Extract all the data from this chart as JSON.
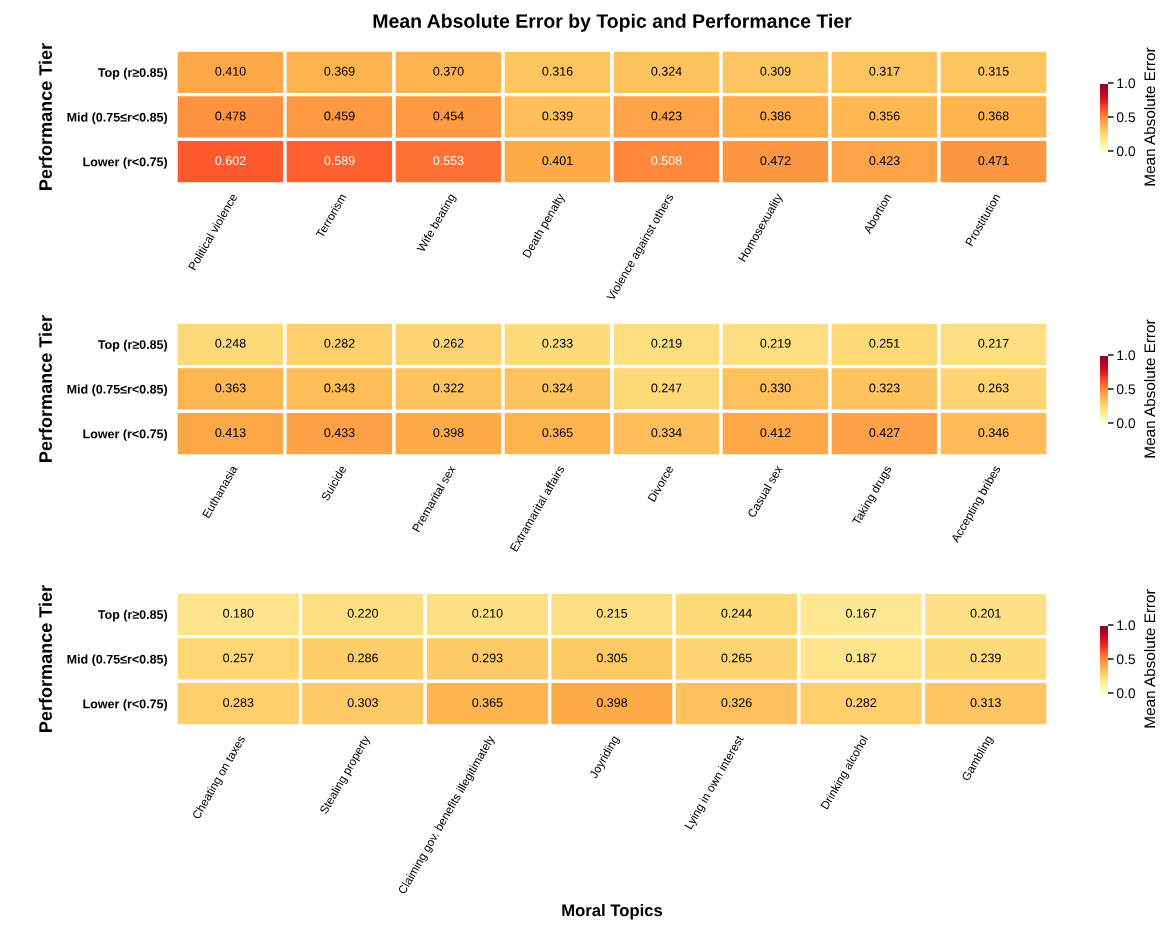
{
  "chart_data": [
    {
      "type": "heatmap",
      "title": "Mean Absolute Error by Topic and Performance Tier",
      "ylabel": "Performance Tier",
      "clabel": "Mean Absolute Error",
      "categories": [
        "Political violence",
        "Terrorism",
        "Wife beating",
        "Death penalty",
        "Violence against others",
        "Homosexuality",
        "Abortion",
        "Prostitution"
      ],
      "y_categories": [
        "Top (r≥0.85)",
        "Mid (0.75≤r<0.85)",
        "Lower (r<0.75)"
      ],
      "cells": [
        [
          0.41,
          0.369,
          0.37,
          0.316,
          0.324,
          0.309,
          0.317,
          0.315
        ],
        [
          0.478,
          0.459,
          0.454,
          0.339,
          0.423,
          0.386,
          0.356,
          0.368
        ],
        [
          0.602,
          0.589,
          0.553,
          0.401,
          0.508,
          0.472,
          0.423,
          0.471
        ]
      ],
      "cell_labels": [
        [
          "0.410",
          "0.369",
          "0.370",
          "0.316",
          "0.324",
          "0.309",
          "0.317",
          "0.315"
        ],
        [
          "0.478",
          "0.459",
          "0.454",
          "0.339",
          "0.423",
          "0.386",
          "0.356",
          "0.368"
        ],
        [
          "0.602",
          "0.589",
          "0.553",
          "0.401",
          "0.508",
          "0.472",
          "0.423",
          "0.471"
        ]
      ],
      "clim": [
        0,
        1
      ],
      "cticks": [
        {
          "value": 0,
          "label": "0.0"
        },
        {
          "value": 0.5,
          "label": "0.5"
        },
        {
          "value": 1,
          "label": "1.0"
        }
      ]
    },
    {
      "type": "heatmap",
      "ylabel": "Performance Tier",
      "clabel": "Mean Absolute Error",
      "categories": [
        "Euthanasia",
        "Suicide",
        "Premarital sex",
        "Extramarital affairs",
        "Divorce",
        "Casual sex",
        "Taking drugs",
        "Accepting bribes"
      ],
      "y_categories": [
        "Top (r≥0.85)",
        "Mid (0.75≤r<0.85)",
        "Lower (r<0.75)"
      ],
      "cells": [
        [
          0.248,
          0.282,
          0.262,
          0.233,
          0.219,
          0.219,
          0.251,
          0.217
        ],
        [
          0.363,
          0.343,
          0.322,
          0.324,
          0.247,
          0.33,
          0.323,
          0.263
        ],
        [
          0.413,
          0.433,
          0.398,
          0.365,
          0.334,
          0.412,
          0.427,
          0.346
        ]
      ],
      "cell_labels": [
        [
          "0.248",
          "0.282",
          "0.262",
          "0.233",
          "0.219",
          "0.219",
          "0.251",
          "0.217"
        ],
        [
          "0.363",
          "0.343",
          "0.322",
          "0.324",
          "0.247",
          "0.330",
          "0.323",
          "0.263"
        ],
        [
          "0.413",
          "0.433",
          "0.398",
          "0.365",
          "0.334",
          "0.412",
          "0.427",
          "0.346"
        ]
      ],
      "clim": [
        0,
        1
      ],
      "cticks": [
        {
          "value": 0,
          "label": "0.0"
        },
        {
          "value": 0.5,
          "label": "0.5"
        },
        {
          "value": 1,
          "label": "1.0"
        }
      ]
    },
    {
      "type": "heatmap",
      "ylabel": "Performance Tier",
      "xlabel": "Moral Topics",
      "clabel": "Mean Absolute Error",
      "categories": [
        "Cheating on taxes",
        "Stealing property",
        "Claiming gov. benefits illegitimately",
        "Joyriding",
        "Lying in own interest",
        "Drinking alcohol",
        "Gambling"
      ],
      "y_categories": [
        "Top (r≥0.85)",
        "Mid (0.75≤r<0.85)",
        "Lower (r<0.75)"
      ],
      "cells": [
        [
          0.18,
          0.22,
          0.21,
          0.215,
          0.244,
          0.167,
          0.201
        ],
        [
          0.257,
          0.286,
          0.293,
          0.305,
          0.265,
          0.187,
          0.239
        ],
        [
          0.283,
          0.303,
          0.365,
          0.398,
          0.326,
          0.282,
          0.313
        ]
      ],
      "cell_labels": [
        [
          "0.180",
          "0.220",
          "0.210",
          "0.215",
          "0.244",
          "0.167",
          "0.201"
        ],
        [
          "0.257",
          "0.286",
          "0.293",
          "0.305",
          "0.265",
          "0.187",
          "0.239"
        ],
        [
          "0.283",
          "0.303",
          "0.365",
          "0.398",
          "0.326",
          "0.282",
          "0.313"
        ]
      ],
      "clim": [
        0,
        1
      ],
      "cticks": [
        {
          "value": 0,
          "label": "0.0"
        },
        {
          "value": 0.5,
          "label": "0.5"
        },
        {
          "value": 1,
          "label": "1.0"
        }
      ]
    }
  ]
}
